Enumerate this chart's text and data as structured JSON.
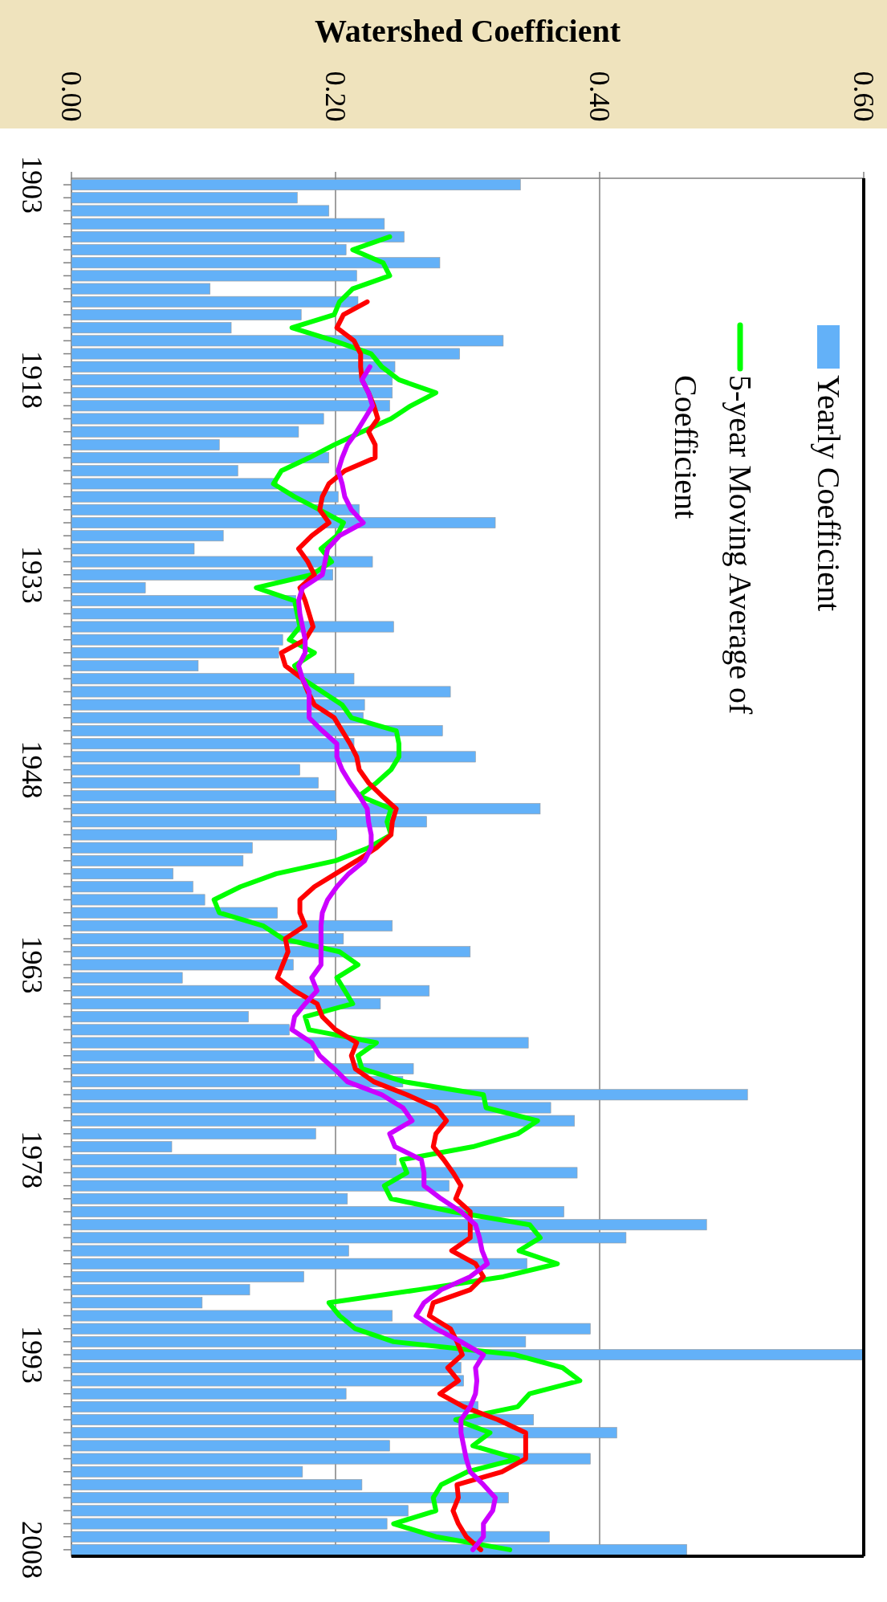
{
  "chart_data": {
    "type": "bar",
    "orientation": "horizontal",
    "xlabel": "Watershed Coefficient",
    "categories": [
      "1903",
      null,
      null,
      null,
      null,
      null,
      null,
      null,
      null,
      null,
      null,
      null,
      null,
      null,
      null,
      "1918",
      null,
      null,
      null,
      null,
      null,
      null,
      null,
      null,
      null,
      null,
      null,
      null,
      null,
      null,
      "1933",
      null,
      null,
      null,
      null,
      null,
      null,
      null,
      null,
      null,
      null,
      null,
      null,
      null,
      null,
      "1948",
      null,
      null,
      null,
      null,
      null,
      null,
      null,
      null,
      null,
      null,
      null,
      null,
      null,
      null,
      "1963",
      null,
      null,
      null,
      null,
      null,
      null,
      null,
      null,
      null,
      null,
      null,
      null,
      null,
      null,
      "1978",
      null,
      null,
      null,
      null,
      null,
      null,
      null,
      null,
      null,
      null,
      null,
      null,
      null,
      null,
      "1993",
      null,
      null,
      null,
      null,
      null,
      null,
      null,
      null,
      null,
      null,
      null,
      null,
      null,
      null,
      "2008"
    ],
    "xlim": [
      0,
      0.6
    ],
    "xticks": [
      {
        "value": 0,
        "label": "0.00"
      },
      {
        "value": 0.2,
        "label": "0.20"
      },
      {
        "value": 0.4,
        "label": "0.40"
      },
      {
        "value": 0.6,
        "label": "0.60"
      }
    ],
    "grid": "x",
    "legend": "top right",
    "marker": "none",
    "series": [
      {
        "name": "Yearly Coefficient",
        "color": "#63b1f8",
        "values": [
          0.34,
          0.171,
          0.195,
          0.237,
          0.252,
          0.208,
          0.279,
          0.216,
          0.105,
          0.217,
          0.174,
          0.121,
          0.327,
          0.294,
          0.245,
          0.243,
          0.243,
          0.241,
          0.191,
          0.172,
          0.112,
          0.195,
          0.126,
          0.156,
          0.202,
          0.218,
          0.321,
          0.115,
          0.093,
          0.228,
          0.198,
          0.056,
          0.17,
          0.17,
          0.244,
          0.16,
          0.157,
          0.096,
          0.214,
          0.287,
          0.222,
          0.221,
          0.281,
          0.214,
          0.306,
          0.173,
          0.187,
          0.2,
          0.355,
          0.269,
          0.201,
          0.137,
          0.13,
          0.077,
          0.092,
          0.101,
          0.156,
          0.243,
          0.206,
          0.302,
          0.168,
          0.084,
          0.271,
          0.234,
          0.134,
          0.165,
          0.346,
          0.184,
          0.259,
          0.251,
          0.512,
          0.363,
          0.381,
          0.185,
          0.076,
          0.246,
          0.383,
          0.286,
          0.209,
          0.373,
          0.481,
          0.42,
          0.21,
          0.345,
          0.176,
          0.135,
          0.099,
          0.243,
          0.393,
          0.344,
          0.599,
          0.295,
          0.297,
          0.208,
          0.308,
          0.35,
          0.413,
          0.241,
          0.393,
          0.175,
          0.22,
          0.331,
          0.255,
          0.239,
          0.362,
          0.466
        ]
      },
      {
        "name": "5-year Moving Average of Coefficient",
        "type": "line",
        "color": "#00ff00",
        "values": [
          null,
          null,
          null,
          null,
          0.241,
          0.213,
          0.236,
          0.241,
          0.213,
          0.203,
          0.199,
          0.167,
          0.199,
          0.227,
          0.235,
          0.248,
          0.276,
          0.257,
          0.242,
          0.22,
          0.199,
          0.18,
          0.159,
          0.153,
          0.169,
          0.188,
          0.206,
          0.201,
          0.189,
          0.197,
          0.182,
          0.14,
          0.169,
          0.171,
          0.173,
          0.165,
          0.184,
          0.169,
          0.175,
          0.19,
          0.205,
          0.212,
          0.246,
          0.248,
          0.248,
          0.242,
          0.231,
          0.218,
          0.242,
          0.239,
          0.242,
          0.225,
          0.2,
          0.155,
          0.128,
          0.108,
          0.112,
          0.145,
          0.16,
          0.203,
          0.217,
          0.201,
          0.207,
          0.213,
          0.177,
          0.18,
          0.231,
          0.217,
          0.22,
          0.252,
          0.312,
          0.314,
          0.353,
          0.338,
          0.304,
          0.25,
          0.254,
          0.237,
          0.242,
          0.289,
          0.347,
          0.355,
          0.339,
          0.368,
          0.327,
          0.263,
          0.195,
          0.203,
          0.215,
          0.244,
          0.336,
          0.372,
          0.385,
          0.347,
          0.338,
          0.291,
          0.317,
          0.304,
          0.338,
          0.3,
          0.28,
          0.274,
          0.276,
          0.244,
          0.276,
          0.332
        ]
      },
      {
        "type": "line",
        "color": "#ff0000",
        "values": [
          null,
          null,
          null,
          null,
          null,
          null,
          null,
          null,
          null,
          0.224,
          0.206,
          0.201,
          0.214,
          0.219,
          0.219,
          0.22,
          0.225,
          0.229,
          0.232,
          0.225,
          0.23,
          0.23,
          0.207,
          0.195,
          0.19,
          0.188,
          0.195,
          0.182,
          0.172,
          0.179,
          0.184,
          0.173,
          0.177,
          0.18,
          0.183,
          0.177,
          0.159,
          0.162,
          0.175,
          0.179,
          0.184,
          0.199,
          0.205,
          0.211,
          0.216,
          0.218,
          0.225,
          0.235,
          0.246,
          0.243,
          0.242,
          0.231,
          0.216,
          0.2,
          0.184,
          0.173,
          0.173,
          0.177,
          0.162,
          0.164,
          0.16,
          0.156,
          0.169,
          0.186,
          0.19,
          0.2,
          0.216,
          0.212,
          0.215,
          0.229,
          0.254,
          0.276,
          0.284,
          0.276,
          0.274,
          0.282,
          0.289,
          0.295,
          0.291,
          0.302,
          0.302,
          0.302,
          0.288,
          0.306,
          0.312,
          0.302,
          0.274,
          0.271,
          0.287,
          0.292,
          0.296,
          0.285,
          0.293,
          0.279,
          0.297,
          0.323,
          0.344,
          0.344,
          0.344,
          0.326,
          0.292,
          0.293,
          0.289,
          0.293,
          0.299,
          0.31
        ]
      },
      {
        "type": "line",
        "color": "#cc00ff",
        "values": [
          null,
          null,
          null,
          null,
          null,
          null,
          null,
          null,
          null,
          null,
          null,
          null,
          null,
          null,
          0.226,
          0.22,
          0.225,
          0.228,
          0.222,
          0.216,
          0.209,
          0.205,
          0.202,
          0.205,
          0.207,
          0.212,
          0.221,
          0.203,
          0.194,
          0.192,
          0.19,
          0.175,
          0.172,
          0.173,
          0.175,
          0.177,
          0.177,
          0.172,
          0.175,
          0.18,
          0.18,
          0.18,
          0.19,
          0.201,
          0.201,
          0.205,
          0.211,
          0.218,
          0.224,
          0.225,
          0.227,
          0.227,
          0.222,
          0.21,
          0.201,
          0.194,
          0.19,
          0.189,
          0.189,
          0.189,
          0.189,
          0.182,
          0.186,
          0.177,
          0.169,
          0.167,
          0.182,
          0.188,
          0.199,
          0.209,
          0.235,
          0.251,
          0.258,
          0.241,
          0.245,
          0.265,
          0.267,
          0.267,
          0.28,
          0.295,
          0.306,
          0.309,
          0.311,
          0.315,
          0.302,
          0.28,
          0.267,
          0.261,
          0.276,
          0.295,
          0.312,
          0.306,
          0.307,
          0.306,
          0.302,
          0.295,
          0.295,
          0.297,
          0.299,
          0.302,
          0.312,
          0.321,
          0.319,
          0.312,
          0.312,
          0.304
        ]
      }
    ]
  }
}
